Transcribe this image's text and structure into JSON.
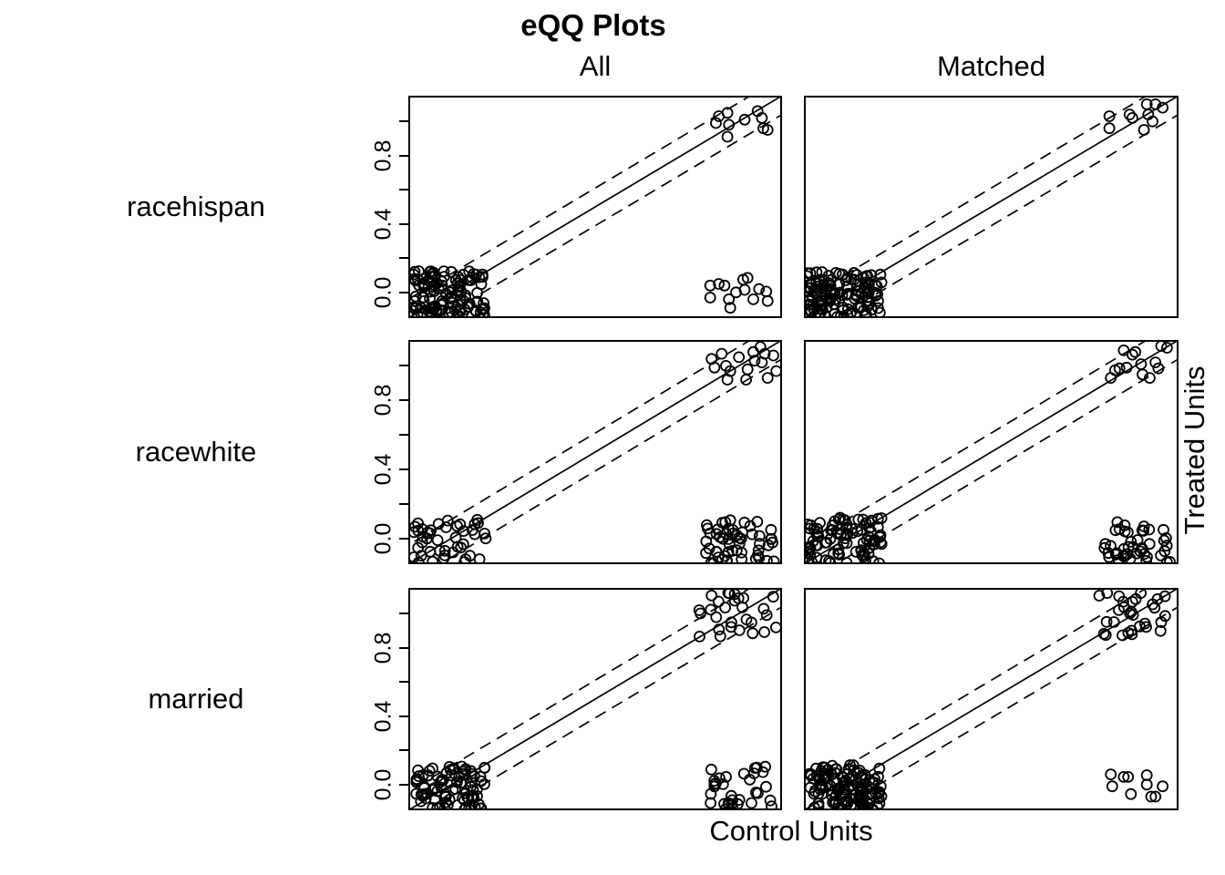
{
  "title": "eQQ Plots",
  "column_headers": [
    "All",
    "Matched"
  ],
  "row_labels": [
    "racehispan",
    "racewhite",
    "married"
  ],
  "xlabel": "Control Units",
  "ylabel_right": "Treated Units",
  "style": {
    "stroke": "#000000",
    "background": "#ffffff",
    "point_radius": 5.5
  },
  "axis": {
    "side": "left",
    "range": [
      -0.15,
      1.15
    ],
    "tick_values": [
      0,
      0.2,
      0.4,
      0.6,
      0.8,
      1.0
    ],
    "labeled_ticks": [
      {
        "value": 0.0,
        "label": "0.0"
      },
      {
        "value": 0.4,
        "label": "0.4"
      },
      {
        "value": 0.8,
        "label": "0.8"
      }
    ]
  },
  "chart_data": [
    {
      "type": "scatter",
      "variable": "racehispan",
      "sample": "All",
      "xlabel": "Control Units",
      "ylabel": "Treated Units",
      "xlim": [
        -0.15,
        1.15
      ],
      "ylim": [
        -0.15,
        1.15
      ],
      "identity_line": true,
      "band_offset": 0.11,
      "groups": [
        {
          "name": "both-zero-cluster",
          "type": "blob",
          "n": 120,
          "x": [
            -0.135,
            0.12
          ],
          "y": [
            -0.135,
            0.125
          ]
        },
        {
          "name": "both-one-points",
          "type": "points",
          "pts": [
            [
              0.92,
              0.99
            ],
            [
              0.93,
              1.03
            ],
            [
              0.96,
              1.05
            ],
            [
              0.965,
              0.98
            ],
            [
              0.96,
              0.91
            ],
            [
              1.02,
              1.01
            ],
            [
              1.065,
              1.06
            ],
            [
              1.08,
              1.02
            ],
            [
              1.085,
              0.96
            ],
            [
              1.1,
              0.95
            ]
          ]
        },
        {
          "name": "control-one-treated-zero-points",
          "type": "points",
          "pts": [
            [
              0.9,
              0.04
            ],
            [
              0.93,
              0.05
            ],
            [
              0.95,
              0.04
            ],
            [
              0.9,
              -0.03
            ],
            [
              0.965,
              -0.04
            ],
            [
              0.99,
              0.0
            ],
            [
              1.015,
              0.075
            ],
            [
              1.03,
              0.085
            ],
            [
              1.02,
              0.015
            ],
            [
              1.05,
              -0.04
            ],
            [
              1.07,
              0.02
            ],
            [
              1.095,
              0.005
            ],
            [
              1.1,
              -0.05
            ],
            [
              0.97,
              -0.09
            ]
          ]
        }
      ]
    },
    {
      "type": "scatter",
      "variable": "racehispan",
      "sample": "Matched",
      "xlabel": "Control Units",
      "ylabel": "Treated Units",
      "xlim": [
        -0.15,
        1.15
      ],
      "ylim": [
        -0.15,
        1.15
      ],
      "identity_line": true,
      "band_offset": 0.11,
      "groups": [
        {
          "name": "both-zero-cluster",
          "type": "blob",
          "n": 125,
          "x": [
            -0.14,
            0.12
          ],
          "y": [
            -0.145,
            0.12
          ]
        },
        {
          "name": "both-one-points",
          "type": "points",
          "pts": [
            [
              0.91,
              1.03
            ],
            [
              0.91,
              0.96
            ],
            [
              0.98,
              1.04
            ],
            [
              0.99,
              1.02
            ],
            [
              1.04,
              1.1
            ],
            [
              1.045,
              1.04
            ],
            [
              1.06,
              1.0
            ],
            [
              1.03,
              0.95
            ],
            [
              1.095,
              1.08
            ],
            [
              1.07,
              1.1
            ]
          ]
        }
      ]
    },
    {
      "type": "scatter",
      "variable": "racewhite",
      "sample": "All",
      "xlabel": "Control Units",
      "ylabel": "Treated Units",
      "xlim": [
        -0.15,
        1.15
      ],
      "ylim": [
        -0.15,
        1.15
      ],
      "identity_line": true,
      "band_offset": 0.11,
      "groups": [
        {
          "name": "both-zero-cluster",
          "type": "blob",
          "n": 44,
          "x": [
            -0.135,
            0.12
          ],
          "y": [
            -0.145,
            0.115
          ]
        },
        {
          "name": "both-one-points",
          "type": "points",
          "pts": [
            [
              0.905,
              1.04
            ],
            [
              0.94,
              1.07
            ],
            [
              0.955,
              1.0
            ],
            [
              0.97,
              0.97
            ],
            [
              0.96,
              0.92
            ],
            [
              1.03,
              0.98
            ],
            [
              1.05,
              1.08
            ],
            [
              1.055,
              1.03
            ],
            [
              1.075,
              1.11
            ],
            [
              1.09,
              1.07
            ],
            [
              1.08,
              1.02
            ],
            [
              1.1,
              0.93
            ],
            [
              1.025,
              0.92
            ],
            [
              1.12,
              1.06
            ],
            [
              1.13,
              0.97
            ],
            [
              0.915,
              0.99
            ],
            [
              1.0,
              1.05
            ]
          ]
        },
        {
          "name": "control-one-treated-zero-cluster",
          "type": "blob",
          "n": 55,
          "x": [
            0.885,
            1.125
          ],
          "y": [
            -0.145,
            0.105
          ]
        }
      ]
    },
    {
      "type": "scatter",
      "variable": "racewhite",
      "sample": "Matched",
      "xlabel": "Control Units",
      "ylabel": "Treated Units",
      "xlim": [
        -0.15,
        1.15
      ],
      "ylim": [
        -0.15,
        1.15
      ],
      "identity_line": true,
      "band_offset": 0.11,
      "groups": [
        {
          "name": "both-zero-cluster",
          "type": "blob",
          "n": 90,
          "x": [
            -0.14,
            0.12
          ],
          "y": [
            -0.145,
            0.12
          ]
        },
        {
          "name": "both-one-points",
          "type": "points",
          "pts": [
            [
              0.915,
              0.93
            ],
            [
              0.93,
              0.975
            ],
            [
              0.945,
              0.985
            ],
            [
              0.97,
              0.99
            ],
            [
              0.96,
              1.09
            ],
            [
              1.0,
              1.08
            ],
            [
              1.02,
              1.01
            ],
            [
              1.025,
              0.95
            ],
            [
              1.05,
              0.93
            ],
            [
              1.07,
              1.02
            ],
            [
              1.08,
              0.985
            ],
            [
              1.09,
              1.115
            ],
            [
              1.11,
              1.105
            ],
            [
              0.99,
              1.065
            ]
          ]
        },
        {
          "name": "control-one-treated-zero-cluster",
          "type": "blob",
          "n": 45,
          "x": [
            0.89,
            1.12
          ],
          "y": [
            -0.145,
            0.095
          ]
        }
      ]
    },
    {
      "type": "scatter",
      "variable": "married",
      "sample": "All",
      "xlabel": "Control Units",
      "ylabel": "Treated Units",
      "xlim": [
        -0.15,
        1.15
      ],
      "ylim": [
        -0.15,
        1.15
      ],
      "identity_line": true,
      "band_offset": 0.11,
      "groups": [
        {
          "name": "both-zero-cluster",
          "type": "blob",
          "n": 85,
          "x": [
            -0.134,
            0.117
          ],
          "y": [
            -0.145,
            0.107
          ]
        },
        {
          "name": "both-one-cluster",
          "type": "blob",
          "n": 28,
          "x": [
            0.86,
            1.135
          ],
          "y": [
            0.865,
            1.125
          ]
        },
        {
          "name": "control-one-treated-zero-cluster",
          "type": "blob",
          "n": 33,
          "x": [
            0.895,
            1.12
          ],
          "y": [
            -0.145,
            0.115
          ]
        }
      ]
    },
    {
      "type": "scatter",
      "variable": "married",
      "sample": "Matched",
      "xlabel": "Control Units",
      "ylabel": "Treated Units",
      "xlim": [
        -0.15,
        1.15
      ],
      "ylim": [
        -0.15,
        1.15
      ],
      "identity_line": true,
      "band_offset": 0.11,
      "groups": [
        {
          "name": "both-zero-cluster",
          "type": "blob",
          "n": 125,
          "x": [
            -0.14,
            0.12
          ],
          "y": [
            -0.145,
            0.115
          ]
        },
        {
          "name": "both-one-cluster",
          "type": "blob",
          "n": 30,
          "x": [
            0.87,
            1.12
          ],
          "y": [
            0.87,
            1.125
          ]
        },
        {
          "name": "control-one-treated-zero-points",
          "type": "points",
          "pts": [
            [
              0.915,
              0.06
            ],
            [
              0.92,
              -0.01
            ],
            [
              0.96,
              0.045
            ],
            [
              0.975,
              0.045
            ],
            [
              0.985,
              -0.055
            ],
            [
              1.04,
              0.055
            ],
            [
              1.04,
              0.0
            ],
            [
              1.055,
              -0.07
            ],
            [
              1.07,
              -0.07
            ],
            [
              1.095,
              -0.01
            ]
          ]
        }
      ]
    }
  ]
}
